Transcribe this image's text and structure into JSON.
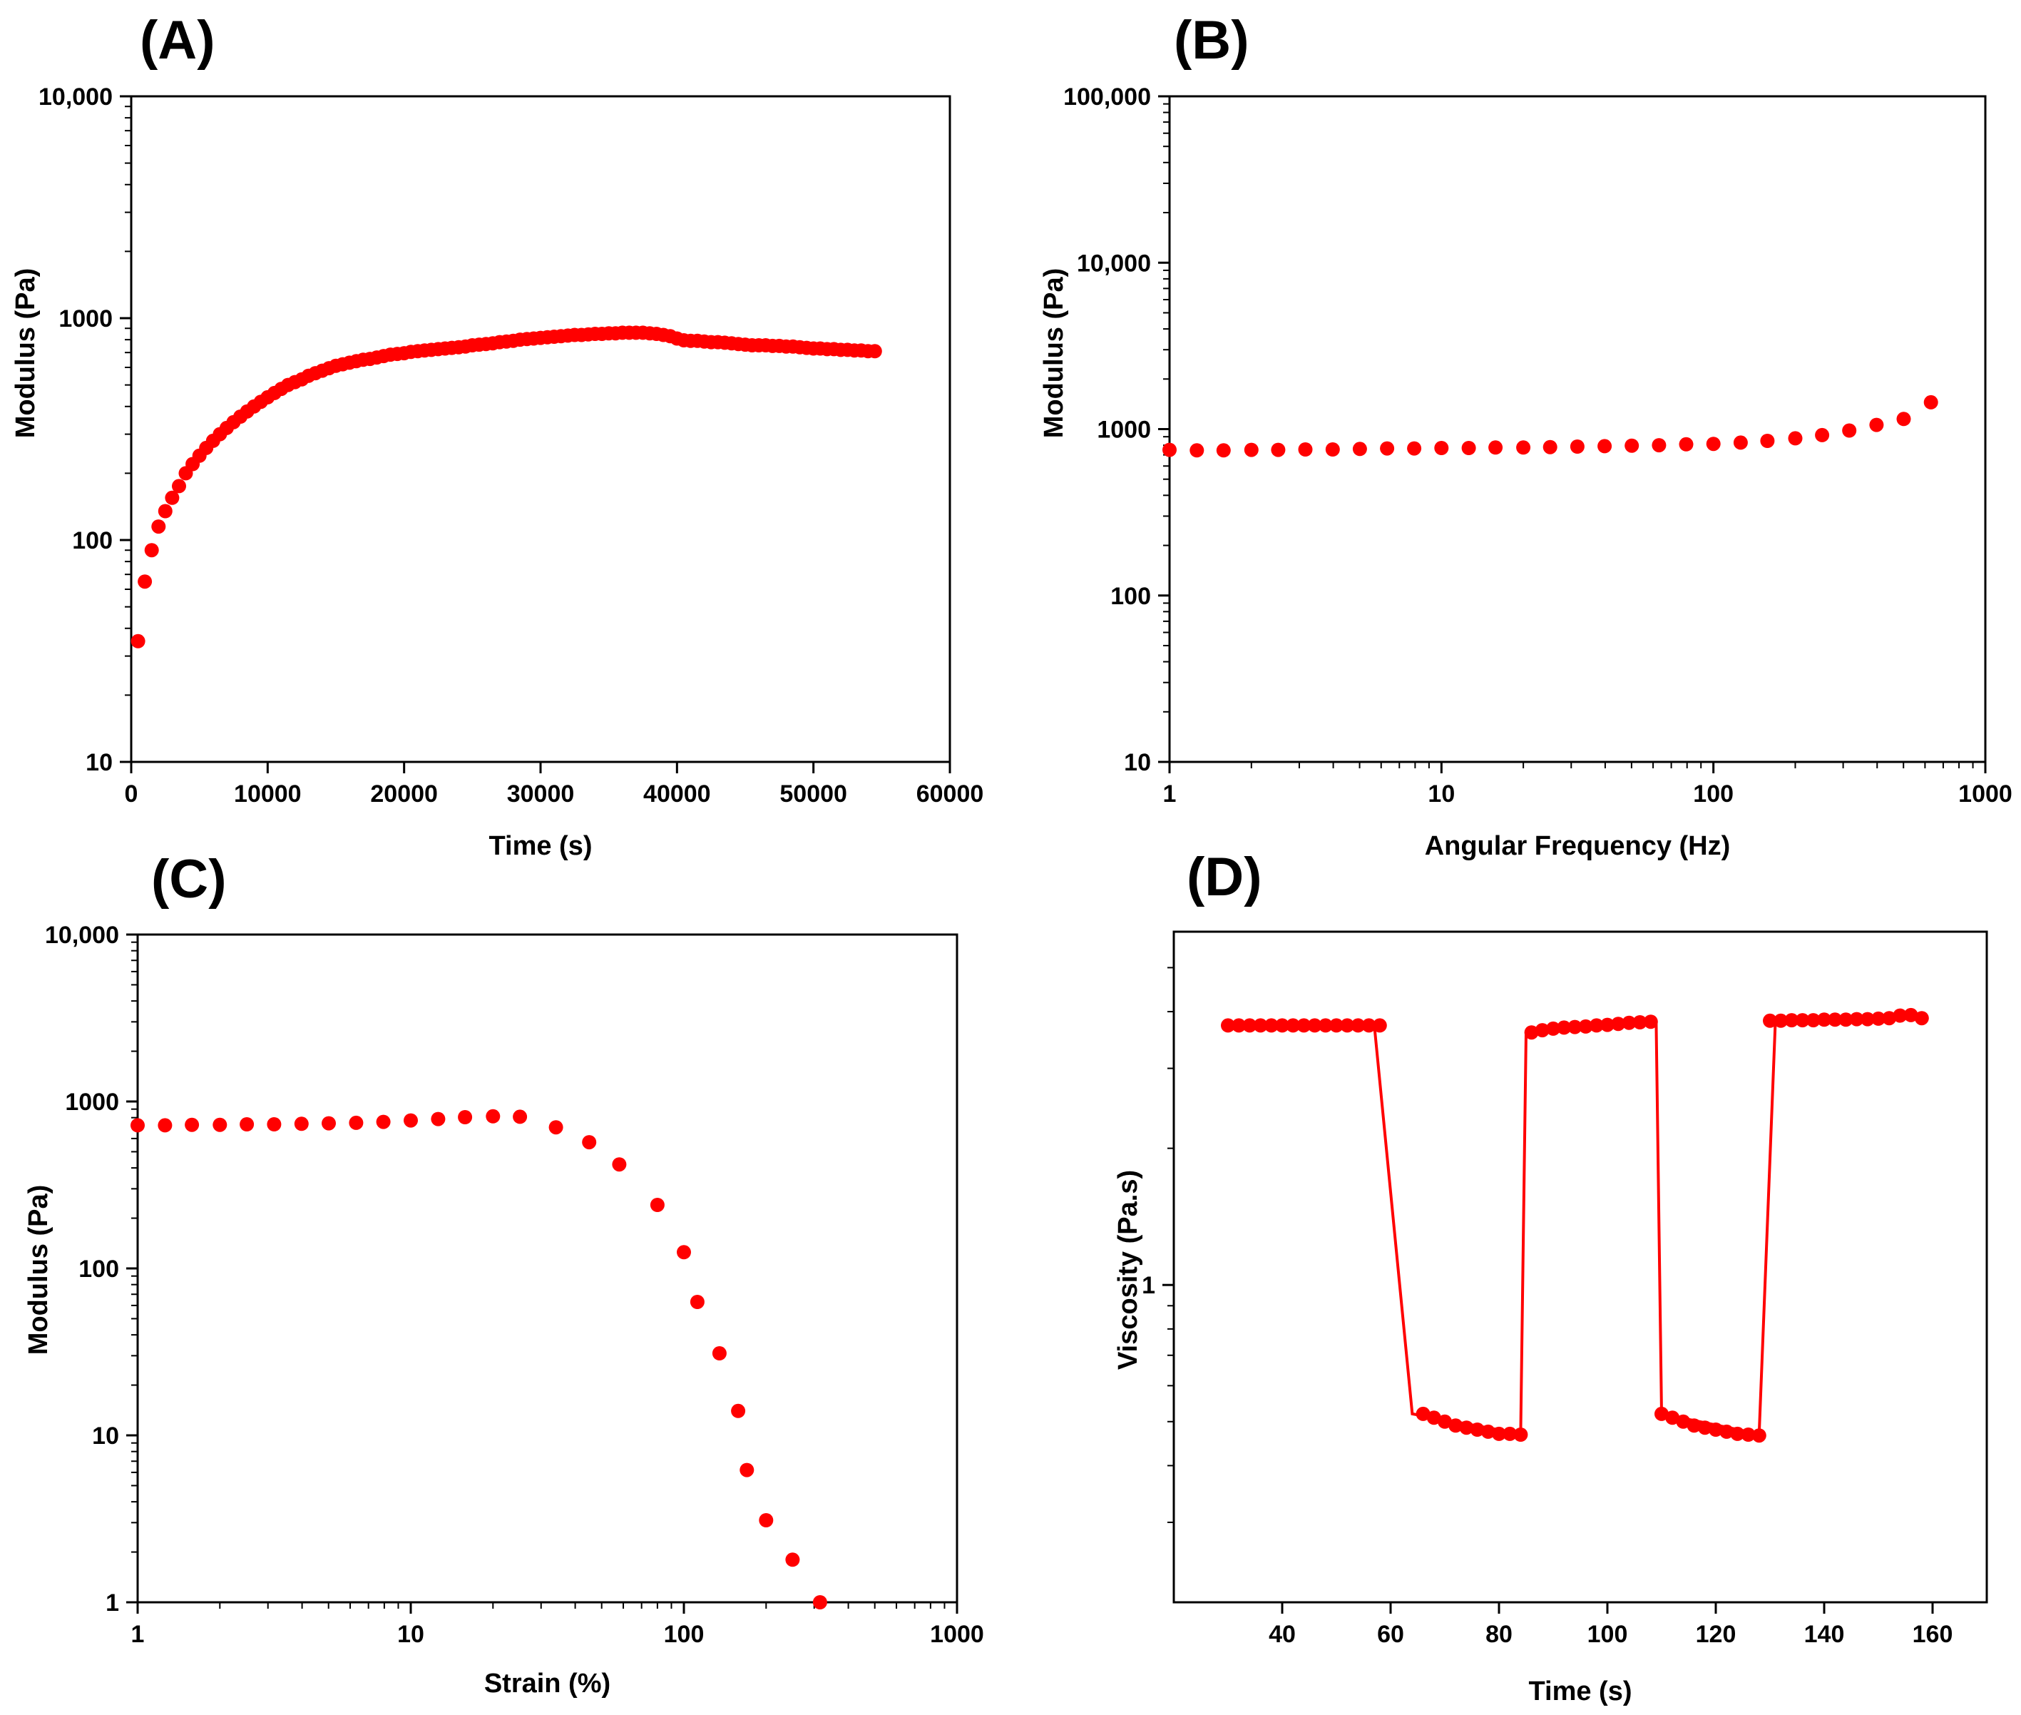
{
  "chart_data": [
    {
      "panel": "(A)",
      "type": "scatter",
      "xlabel": "Time (s)",
      "ylabel": "Modulus (Pa)",
      "xscale": "linear",
      "yscale": "log",
      "xlim": [
        0,
        60000
      ],
      "ylim": [
        10,
        10000
      ],
      "xticks": [
        "0",
        "10000",
        "20000",
        "30000",
        "40000",
        "50000",
        "60000"
      ],
      "yticks": [
        "10",
        "100",
        "1000",
        "10,000"
      ],
      "marker_color": "#ff0000",
      "series": [
        {
          "x": [
            500,
            1000,
            1500,
            2000,
            2500,
            3000,
            3500,
            4000,
            4500,
            5000,
            5500,
            6000,
            6500,
            7000,
            7500,
            8000,
            8500,
            9000,
            9500,
            10000,
            10500,
            11000,
            11500,
            12000,
            12500,
            13000,
            13500,
            14000,
            14500,
            15000,
            15500,
            16000,
            16500,
            17000,
            17500,
            18000,
            18500,
            19000,
            19500,
            20000,
            20500,
            21000,
            21500,
            22000,
            22500,
            23000,
            23500,
            24000,
            24500,
            25000,
            25500,
            26000,
            26500,
            27000,
            27500,
            28000,
            28500,
            29000,
            29500,
            30000,
            30500,
            31000,
            31500,
            32000,
            32500,
            33000,
            33500,
            34000,
            34500,
            35000,
            35500,
            36000,
            36500,
            37000,
            37500,
            38000,
            38500,
            39000,
            39500,
            40000,
            40500,
            41000,
            41500,
            42000,
            42500,
            43000,
            43500,
            44000,
            44500,
            45000,
            45500,
            46000,
            46500,
            47000,
            47500,
            48000,
            48500,
            49000,
            49500,
            50000,
            50500,
            51000,
            51500,
            52000,
            52500,
            53000,
            53500,
            54000,
            54500
          ],
          "y": [
            35,
            65,
            90,
            115,
            135,
            155,
            175,
            200,
            220,
            240,
            260,
            280,
            300,
            320,
            340,
            360,
            380,
            400,
            420,
            440,
            460,
            480,
            500,
            515,
            530,
            550,
            565,
            580,
            595,
            610,
            620,
            630,
            640,
            650,
            655,
            665,
            675,
            685,
            690,
            695,
            705,
            710,
            715,
            720,
            725,
            730,
            735,
            740,
            745,
            755,
            760,
            765,
            770,
            780,
            785,
            790,
            800,
            805,
            810,
            815,
            820,
            825,
            830,
            835,
            840,
            840,
            845,
            850,
            850,
            855,
            855,
            860,
            860,
            860,
            860,
            855,
            850,
            840,
            830,
            810,
            795,
            790,
            790,
            785,
            780,
            780,
            775,
            770,
            765,
            760,
            755,
            755,
            755,
            750,
            750,
            745,
            745,
            740,
            735,
            730,
            730,
            725,
            725,
            720,
            720,
            715,
            715,
            710,
            710
          ]
        }
      ]
    },
    {
      "panel": "(B)",
      "type": "scatter",
      "xlabel": "Angular Frequency (Hz)",
      "ylabel": "Modulus (Pa)",
      "xscale": "log",
      "yscale": "log",
      "xlim": [
        1,
        1000
      ],
      "ylim": [
        10,
        100000
      ],
      "xticks": [
        "1",
        "10",
        "100",
        "1000"
      ],
      "yticks": [
        "10",
        "100",
        "1000",
        "10,000",
        "100,000"
      ],
      "marker_color": "#ff0000",
      "series": [
        {
          "x": [
            1.0,
            1.26,
            1.58,
            2.0,
            2.51,
            3.16,
            3.98,
            5.01,
            6.31,
            7.94,
            10.0,
            12.6,
            15.8,
            20.0,
            25.1,
            31.6,
            39.8,
            50.1,
            63.1,
            79.4,
            100,
            126,
            158,
            200,
            251,
            316,
            398,
            501,
            631
          ],
          "y": [
            750,
            745,
            745,
            750,
            750,
            755,
            755,
            760,
            765,
            765,
            770,
            770,
            775,
            775,
            780,
            785,
            790,
            795,
            800,
            810,
            815,
            830,
            850,
            880,
            920,
            980,
            1060,
            1150,
            1450
          ]
        }
      ]
    },
    {
      "panel": "(C)",
      "type": "scatter",
      "xlabel": "Strain (%)",
      "ylabel": "Modulus (Pa)",
      "xscale": "log",
      "yscale": "log",
      "xlim": [
        1,
        1000
      ],
      "ylim": [
        1,
        10000
      ],
      "xticks": [
        "1",
        "10",
        "100",
        "1000"
      ],
      "yticks": [
        "1",
        "10",
        "100",
        "1000",
        "10,000"
      ],
      "marker_color": "#ff0000",
      "series": [
        {
          "x": [
            1.0,
            1.26,
            1.58,
            2.0,
            2.51,
            3.16,
            3.98,
            5.01,
            6.31,
            7.94,
            10.0,
            12.6,
            15.8,
            20.0,
            25.1,
            34,
            45,
            58,
            80,
            100,
            112,
            135,
            158,
            170,
            200,
            250,
            315
          ],
          "y": [
            720,
            720,
            725,
            725,
            730,
            730,
            735,
            740,
            745,
            755,
            770,
            785,
            805,
            815,
            810,
            700,
            570,
            420,
            240,
            125,
            63,
            31,
            14,
            6.2,
            3.1,
            1.8,
            1.0
          ]
        }
      ]
    },
    {
      "panel": "(D)",
      "type": "line",
      "xlabel": "Time (s)",
      "ylabel": "Viscosity (Pa.s)",
      "xscale": "linear",
      "yscale": "log",
      "xlim": [
        20,
        170
      ],
      "ylim": [
        0.2,
        6
      ],
      "xticks": [
        "40",
        "60",
        "80",
        "100",
        "120",
        "140",
        "160"
      ],
      "yticks": [
        "1"
      ],
      "marker_color": "#ff0000",
      "series": [
        {
          "x": [
            30,
            32,
            34,
            36,
            38,
            40,
            42,
            44,
            46,
            48,
            50,
            52,
            54,
            56,
            58,
            66,
            68,
            70,
            72,
            74,
            76,
            78,
            80,
            82,
            84,
            86,
            88,
            90,
            92,
            94,
            96,
            98,
            100,
            102,
            104,
            106,
            108,
            110,
            112,
            114,
            116,
            118,
            120,
            122,
            124,
            126,
            128,
            130,
            132,
            134,
            136,
            138,
            140,
            142,
            144,
            146,
            148,
            150,
            152,
            154,
            156,
            158
          ],
          "y": [
            3.73,
            3.73,
            3.73,
            3.73,
            3.73,
            3.73,
            3.73,
            3.73,
            3.73,
            3.73,
            3.73,
            3.73,
            3.73,
            3.73,
            3.73,
            0.52,
            0.51,
            0.5,
            0.49,
            0.485,
            0.48,
            0.475,
            0.47,
            0.47,
            0.468,
            3.6,
            3.64,
            3.67,
            3.69,
            3.7,
            3.71,
            3.73,
            3.74,
            3.76,
            3.78,
            3.79,
            3.8,
            0.52,
            0.51,
            0.5,
            0.49,
            0.485,
            0.48,
            0.475,
            0.47,
            0.468,
            0.466,
            3.82,
            3.82,
            3.83,
            3.83,
            3.83,
            3.84,
            3.84,
            3.84,
            3.85,
            3.85,
            3.86,
            3.87,
            3.92,
            3.93,
            3.87
          ]
        }
      ],
      "line_points": {
        "x": [
          30,
          57,
          64,
          84,
          85,
          109,
          110,
          128,
          131,
          158
        ],
        "y": [
          3.73,
          3.73,
          0.52,
          0.47,
          3.6,
          3.8,
          0.52,
          0.47,
          3.82,
          3.87
        ]
      }
    }
  ]
}
